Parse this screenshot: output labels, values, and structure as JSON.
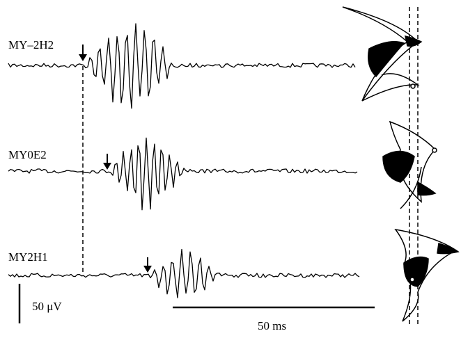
{
  "traces": {
    "labels": [
      "MY–2H2",
      "MY0E2",
      "MY2H1"
    ]
  },
  "scale_bars": {
    "voltage": "50 μV",
    "time": "50 ms"
  }
}
